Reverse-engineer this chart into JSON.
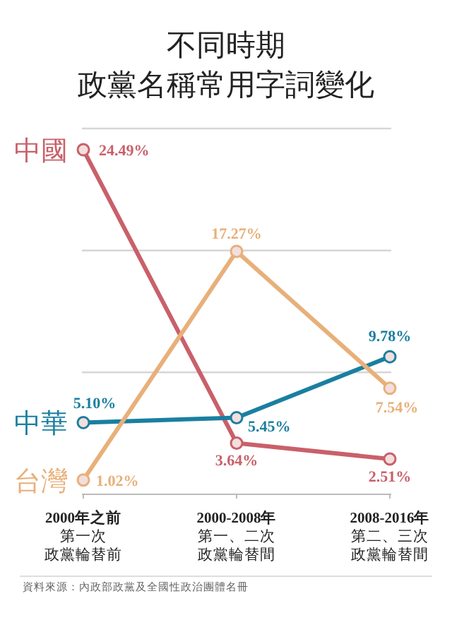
{
  "chart_data": {
    "type": "line",
    "title": "不同時期政黨名稱常用字詞變化",
    "categories": [
      "2000年之前第一次政黨輪替前",
      "2000-2008年第一、二次政黨輪替間",
      "2008-2016年第二、三次政黨輪替間"
    ],
    "series": [
      {
        "name": "中國",
        "color": "#c9606a",
        "values": [
          24.49,
          3.64,
          2.51
        ],
        "value_labels": [
          "24.49%",
          "3.64%",
          "2.51%"
        ]
      },
      {
        "name": "中華",
        "color": "#1a7fa0",
        "values": [
          5.1,
          5.45,
          9.78
        ],
        "value_labels": [
          "5.10%",
          "5.45%",
          "9.78%"
        ]
      },
      {
        "name": "台灣",
        "color": "#e8b07a",
        "values": [
          1.02,
          17.27,
          7.54
        ],
        "value_labels": [
          "1.02%",
          "17.27%",
          "7.54%"
        ]
      }
    ],
    "ylim": [
      0,
      26
    ],
    "ref_lines": [
      {
        "axis": "y",
        "value": 8.67,
        "color": "#d6d6d6"
      },
      {
        "axis": "y",
        "value": 17.33,
        "color": "#d6d6d6"
      },
      {
        "axis": "y",
        "value": 26,
        "color": "#d6d6d6"
      }
    ],
    "marker": "circle",
    "line_style": "solid",
    "legend": false,
    "annotations": [
      "資料來源：內政部政黨及全國性政治團體名冊"
    ]
  }
}
